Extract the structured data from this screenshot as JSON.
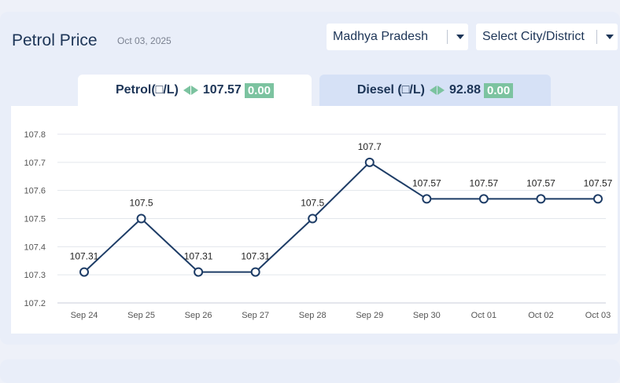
{
  "header": {
    "title": "Petrol Price",
    "date": "Oct 03, 2025"
  },
  "filters": {
    "state": "Madhya Pradesh",
    "city": "Select City/District"
  },
  "tabs": {
    "petrol": {
      "label": "Petrol(□/L)",
      "price": "107.57",
      "change": "0.00"
    },
    "diesel": {
      "label": "Diesel (□/L)",
      "price": "92.88",
      "change": "0.00"
    }
  },
  "colors": {
    "line": "#1d3c66",
    "badge": "#7cc3a0",
    "grid": "#e3e6ec",
    "title": "#1d3557"
  },
  "chart_data": {
    "type": "line",
    "title": "",
    "xlabel": "",
    "ylabel": "",
    "categories": [
      "Sep 24",
      "Sep 25",
      "Sep 26",
      "Sep 27",
      "Sep 28",
      "Sep 29",
      "Sep 30",
      "Oct 01",
      "Oct 02",
      "Oct 03"
    ],
    "series": [
      {
        "values": [
          107.31,
          107.5,
          107.31,
          107.31,
          107.5,
          107.7,
          107.57,
          107.57,
          107.57,
          107.57
        ]
      }
    ],
    "data_labels": [
      "107.31",
      "107.5",
      "107.31",
      "107.31",
      "107.5",
      "107.7",
      "107.57",
      "107.57",
      "107.57",
      "107.57"
    ],
    "ylim": [
      107.2,
      107.8
    ],
    "yticks": [
      "107.2",
      "107.3",
      "107.4",
      "107.5",
      "107.6",
      "107.7",
      "107.8"
    ],
    "grid": true,
    "legend": "none"
  }
}
